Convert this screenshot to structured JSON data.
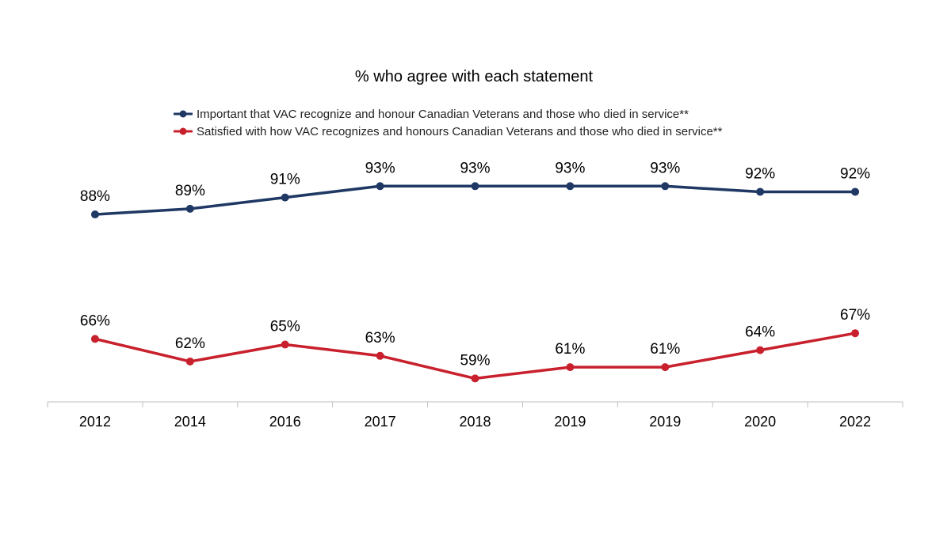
{
  "chart_data": {
    "type": "line",
    "title": "% who agree with each statement",
    "xlabel": "",
    "ylabel": "",
    "categories": [
      "2012",
      "2014",
      "2016",
      "2017",
      "2018",
      "2019",
      "2019",
      "2020",
      "2022"
    ],
    "ylim": [
      55,
      95
    ],
    "grid": false,
    "legend_position": "top",
    "value_suffix": "%",
    "series": [
      {
        "name": "Important that VAC recognize and honour Canadian Veterans and those who died in service**",
        "color": "#1f3864",
        "values": [
          88,
          89,
          91,
          93,
          93,
          93,
          93,
          92,
          92
        ]
      },
      {
        "name": "Satisfied with how VAC recognizes and honours Canadian Veterans and those who died in service**",
        "color": "#c8202c",
        "values": [
          66,
          62,
          65,
          63,
          59,
          61,
          61,
          64,
          67
        ]
      }
    ],
    "axis_color": "#bfbfbf"
  }
}
